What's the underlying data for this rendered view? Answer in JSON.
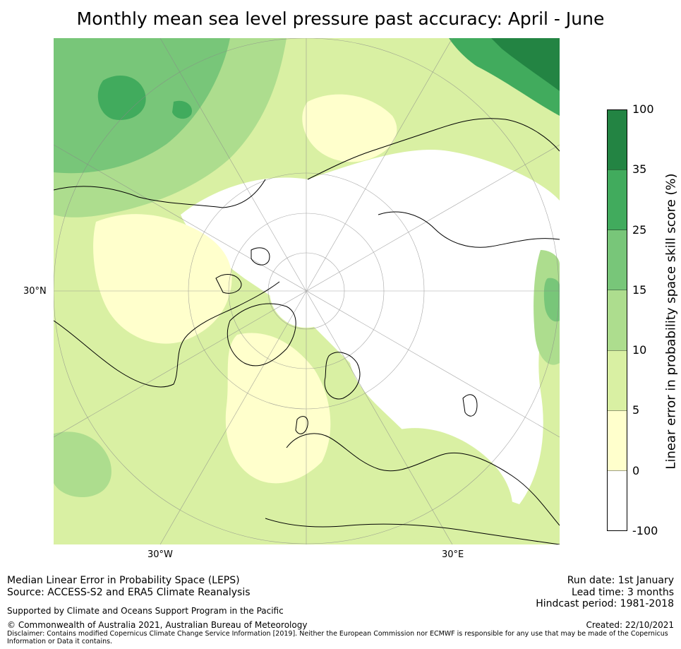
{
  "title": "Monthly mean sea level pressure past accuracy: April - June",
  "map": {
    "projection": "north polar stereographic",
    "gridline_labels": {
      "lon_left": "30°W",
      "lon_right": "30°E",
      "lat": "30°N"
    },
    "palette": [
      "#ffffff",
      "#ffffcc",
      "#d9f0a3",
      "#addd8e",
      "#78c679",
      "#41ab5d",
      "#238443"
    ]
  },
  "colorbar": {
    "label": "Linear error in probability space skill score (%)",
    "ticks": [
      "100",
      "35",
      "25",
      "15",
      "10",
      "5",
      "0",
      "-100"
    ],
    "bins": [
      {
        "from": "-100",
        "to": "0",
        "color": "#ffffff"
      },
      {
        "from": "0",
        "to": "5",
        "color": "#ffffcc"
      },
      {
        "from": "5",
        "to": "10",
        "color": "#d9f0a3"
      },
      {
        "from": "10",
        "to": "15",
        "color": "#addd8e"
      },
      {
        "from": "15",
        "to": "25",
        "color": "#78c679"
      },
      {
        "from": "25",
        "to": "35",
        "color": "#41ab5d"
      },
      {
        "from": "35",
        "to": "100",
        "color": "#238443"
      }
    ]
  },
  "footer": {
    "left1": "Median Linear Error in Probability Space (LEPS)",
    "left2": "Source: ACCESS-S2 and ERA5 Climate Reanalysis",
    "support": "Supported by Climate and Oceans Support Program in the Pacific",
    "copyright": "© Commonwealth of Australia 2021, Australian Bureau of Meteorology",
    "disclaimer1": "Disclaimer: Contains modified Copernicus Climate Change Service Information [2019]. Neither the European Commission nor ECMWF is responsible for any use that may be made of the Copernicus",
    "disclaimer2": "Information or Data it contains.",
    "run_date": "Run date: 1st January",
    "lead_time": "Lead time: 3 months",
    "hindcast": "Hindcast period: 1981-2018",
    "created": "Created: 22/10/2021"
  }
}
